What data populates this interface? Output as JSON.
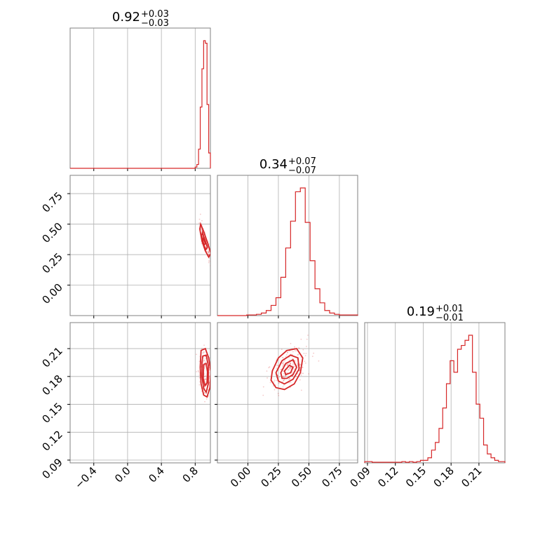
{
  "colors": {
    "accent": "#d62728",
    "grid": "#b0b0b0",
    "frame": "#808080"
  },
  "chart_data": {
    "type": "corner",
    "parameters": [
      {
        "title_median": "0.92",
        "title_plus": "+0.03",
        "title_minus": "−0.03",
        "range": [
          -0.68,
          0.98
        ]
      },
      {
        "title_median": "0.34",
        "title_plus": "+0.07",
        "title_minus": "−0.07",
        "range": [
          -0.25,
          0.9
        ]
      },
      {
        "title_median": "0.19",
        "title_plus": "+0.01",
        "title_minus": "−0.01",
        "range": [
          0.087,
          0.238
        ]
      }
    ],
    "ticks": [
      {
        "values": [
          -0.4,
          0.0,
          0.4,
          0.8
        ],
        "labels": [
          "−0.4",
          "0.0",
          "0.4",
          "0.8"
        ]
      },
      {
        "values": [
          0.0,
          0.25,
          0.5,
          0.75
        ],
        "labels": [
          "0.00",
          "0.25",
          "0.50",
          "0.75"
        ]
      },
      {
        "values": [
          0.09,
          0.12,
          0.15,
          0.18,
          0.21
        ],
        "labels": [
          "0.09",
          "0.12",
          "0.15",
          "0.18",
          "0.21"
        ]
      }
    ],
    "histograms": [
      {
        "param": 0,
        "edges": [
          0.8,
          0.82,
          0.84,
          0.86,
          0.88,
          0.9,
          0.92,
          0.94,
          0.96,
          0.98
        ],
        "values": [
          0.01,
          0.03,
          0.15,
          0.48,
          0.78,
          1.0,
          0.98,
          0.5,
          0.12
        ]
      },
      {
        "param": 1,
        "edges": [
          -0.01,
          0.03,
          0.07,
          0.11,
          0.15,
          0.19,
          0.23,
          0.27,
          0.31,
          0.35,
          0.39,
          0.43,
          0.47,
          0.51,
          0.55,
          0.59,
          0.63,
          0.67,
          0.71,
          0.75,
          0.79,
          0.83,
          0.87,
          0.9
        ],
        "values": [
          0.005,
          0.005,
          0.01,
          0.02,
          0.04,
          0.08,
          0.14,
          0.3,
          0.53,
          0.74,
          0.97,
          1.0,
          0.73,
          0.43,
          0.21,
          0.1,
          0.04,
          0.02,
          0.01,
          0.005,
          0.005,
          0.005,
          0.005
        ]
      },
      {
        "param": 2,
        "edges": [
          0.087,
          0.091,
          0.095,
          0.099,
          0.103,
          0.107,
          0.111,
          0.115,
          0.119,
          0.123,
          0.127,
          0.131,
          0.135,
          0.139,
          0.143,
          0.147,
          0.151,
          0.155,
          0.159,
          0.163,
          0.167,
          0.171,
          0.175,
          0.179,
          0.183,
          0.187,
          0.191,
          0.195,
          0.199,
          0.203,
          0.207,
          0.211,
          0.215,
          0.219,
          0.223,
          0.227,
          0.231,
          0.235,
          0.238
        ],
        "values": [
          0.01,
          0.01,
          0.005,
          0.005,
          0.005,
          0.005,
          0.005,
          0.005,
          0.005,
          0.005,
          0.01,
          0.005,
          0.01,
          0.005,
          0.01,
          0.02,
          0.02,
          0.04,
          0.1,
          0.16,
          0.27,
          0.43,
          0.62,
          0.8,
          0.71,
          0.89,
          0.92,
          0.96,
          1.0,
          0.71,
          0.46,
          0.35,
          0.14,
          0.07,
          0.04,
          0.02,
          0.01,
          0.01
        ]
      }
    ],
    "contours": [
      {
        "px": 0,
        "py": 1,
        "levels": [
          [
            [
              0.865,
              0.5
            ],
            [
              0.9,
              0.44
            ],
            [
              0.95,
              0.34
            ],
            [
              0.985,
              0.26
            ],
            [
              0.96,
              0.23
            ],
            [
              0.92,
              0.28
            ],
            [
              0.88,
              0.36
            ],
            [
              0.855,
              0.46
            ]
          ],
          [
            [
              0.885,
              0.43
            ],
            [
              0.915,
              0.37
            ],
            [
              0.945,
              0.31
            ],
            [
              0.925,
              0.29
            ],
            [
              0.895,
              0.34
            ],
            [
              0.875,
              0.4
            ]
          ],
          [
            [
              0.895,
              0.39
            ],
            [
              0.91,
              0.36
            ],
            [
              0.92,
              0.34
            ],
            [
              0.905,
              0.33
            ],
            [
              0.89,
              0.36
            ]
          ]
        ]
      },
      {
        "px": 0,
        "py": 2,
        "levels": [
          [
            [
              0.87,
              0.208
            ],
            [
              0.92,
              0.21
            ],
            [
              0.96,
              0.2
            ],
            [
              0.985,
              0.185
            ],
            [
              0.975,
              0.168
            ],
            [
              0.94,
              0.158
            ],
            [
              0.9,
              0.16
            ],
            [
              0.87,
              0.172
            ],
            [
              0.86,
              0.19
            ]
          ],
          [
            [
              0.89,
              0.202
            ],
            [
              0.93,
              0.203
            ],
            [
              0.955,
              0.192
            ],
            [
              0.955,
              0.172
            ],
            [
              0.93,
              0.163
            ],
            [
              0.9,
              0.167
            ],
            [
              0.88,
              0.18
            ],
            [
              0.88,
              0.195
            ]
          ],
          [
            [
              0.9,
              0.193
            ],
            [
              0.93,
              0.194
            ],
            [
              0.945,
              0.185
            ],
            [
              0.94,
              0.173
            ],
            [
              0.915,
              0.17
            ],
            [
              0.895,
              0.178
            ]
          ]
        ]
      },
      {
        "px": 1,
        "py": 2,
        "levels": [
          [
            [
              0.2,
              0.186
            ],
            [
              0.25,
              0.2
            ],
            [
              0.32,
              0.208
            ],
            [
              0.4,
              0.21
            ],
            [
              0.45,
              0.2
            ],
            [
              0.43,
              0.184
            ],
            [
              0.38,
              0.172
            ],
            [
              0.3,
              0.166
            ],
            [
              0.23,
              0.168
            ],
            [
              0.19,
              0.176
            ]
          ],
          [
            [
              0.23,
              0.184
            ],
            [
              0.28,
              0.197
            ],
            [
              0.35,
              0.203
            ],
            [
              0.41,
              0.2
            ],
            [
              0.42,
              0.188
            ],
            [
              0.37,
              0.177
            ],
            [
              0.3,
              0.172
            ],
            [
              0.25,
              0.175
            ]
          ],
          [
            [
              0.27,
              0.184
            ],
            [
              0.31,
              0.194
            ],
            [
              0.37,
              0.198
            ],
            [
              0.4,
              0.19
            ],
            [
              0.37,
              0.182
            ],
            [
              0.32,
              0.178
            ],
            [
              0.28,
              0.178
            ]
          ],
          [
            [
              0.3,
              0.186
            ],
            [
              0.34,
              0.192
            ],
            [
              0.37,
              0.19
            ],
            [
              0.35,
              0.184
            ],
            [
              0.31,
              0.182
            ]
          ]
        ]
      }
    ]
  }
}
